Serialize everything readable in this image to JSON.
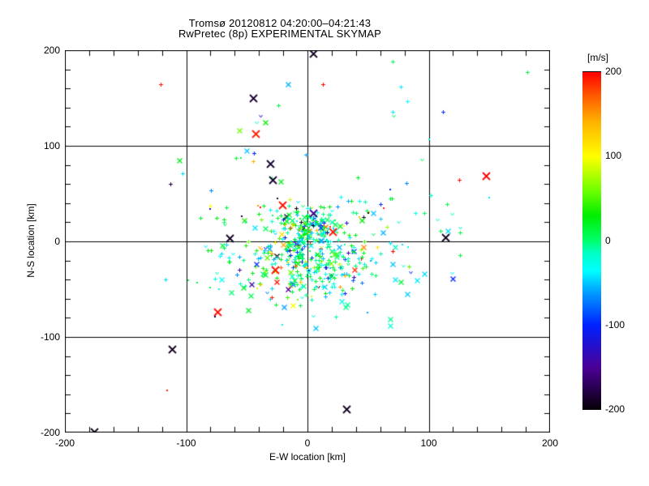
{
  "title": {
    "line1": "Tromsø 20120812 04:20:00–04:21:43",
    "line2": "RwPretec (8p) EXPERIMENTAL SKYMAP"
  },
  "axes": {
    "x": {
      "label": "E-W location [km]",
      "min": -200,
      "max": 200,
      "major_ticks": [
        -200,
        -100,
        0,
        100,
        200
      ],
      "minor_step": 20
    },
    "y": {
      "label": "N-S location [km]",
      "min": -200,
      "max": 200,
      "major_ticks": [
        -200,
        -100,
        0,
        100,
        200
      ],
      "minor_step": 20
    },
    "grid": true
  },
  "colorbar": {
    "label": "[m/s]",
    "min": -200,
    "max": 200,
    "ticks": [
      200,
      100,
      0,
      -100,
      -200
    ],
    "stops": [
      [
        -200,
        "#050005"
      ],
      [
        -150,
        "#4b0096"
      ],
      [
        -100,
        "#0020ff"
      ],
      [
        -60,
        "#00a0ff"
      ],
      [
        -35,
        "#00ffff"
      ],
      [
        -15,
        "#00ffc8"
      ],
      [
        0,
        "#00ff6e"
      ],
      [
        30,
        "#00ee00"
      ],
      [
        60,
        "#70ff00"
      ],
      [
        100,
        "#ffff00"
      ],
      [
        140,
        "#ffb400"
      ],
      [
        170,
        "#ff6000"
      ],
      [
        200,
        "#ff0000"
      ]
    ]
  },
  "chart_data": {
    "type": "scatter",
    "title": "Tromsø 20120812 04:20:00–04:21:43 / RwPretec (8p) EXPERIMENTAL SKYMAP",
    "xlabel": "E-W location [km]",
    "ylabel": "N-S location [km]",
    "xlim": [
      -200,
      200
    ],
    "ylim": [
      -200,
      200
    ],
    "value_unit": "m/s",
    "value_range": [
      -200,
      200
    ],
    "legend_position": "right-colorbar",
    "grid": true,
    "points_format": [
      "x_km",
      "y_km",
      "velocity_mps",
      "marker_code"
    ],
    "marker_codes": {
      "0": "small-plus",
      "1": "medium-cross",
      "2": "large-cross",
      "3": "dot",
      "4": "small-v"
    },
    "points": [
      [
        -121,
        164,
        195,
        0
      ],
      [
        -106,
        85,
        25,
        1
      ],
      [
        -103,
        71,
        -45,
        0
      ],
      [
        5,
        197,
        -190,
        2
      ],
      [
        -16,
        164,
        -55,
        1
      ],
      [
        13,
        164,
        200,
        0
      ],
      [
        -45,
        150,
        -185,
        2
      ],
      [
        -24,
        142,
        10,
        0
      ],
      [
        -39,
        131,
        -120,
        4
      ],
      [
        -42,
        125,
        -20,
        4
      ],
      [
        -35,
        125,
        30,
        1
      ],
      [
        -56,
        116,
        60,
        1
      ],
      [
        -43,
        113,
        190,
        2
      ],
      [
        -50,
        95,
        -50,
        1
      ],
      [
        -44,
        92,
        -100,
        0
      ],
      [
        -59,
        87,
        15,
        0
      ],
      [
        -55,
        87,
        10,
        3
      ],
      [
        -45,
        84,
        140,
        0
      ],
      [
        70,
        188,
        5,
        0
      ],
      [
        181,
        177,
        10,
        0
      ],
      [
        77,
        162,
        -40,
        0
      ],
      [
        82,
        147,
        -35,
        0
      ],
      [
        112,
        136,
        -95,
        0
      ],
      [
        70,
        136,
        -40,
        0
      ],
      [
        71,
        131,
        5,
        4
      ],
      [
        100,
        107,
        -20,
        3
      ],
      [
        94,
        86,
        0,
        4
      ],
      [
        147,
        69,
        200,
        2
      ],
      [
        125,
        64,
        195,
        0
      ],
      [
        -113,
        60,
        -180,
        0
      ],
      [
        -80,
        37,
        100,
        0
      ],
      [
        -80,
        34,
        -110,
        3
      ],
      [
        -88,
        25,
        15,
        0
      ],
      [
        -68,
        18,
        10,
        4
      ],
      [
        -69,
        -7,
        10,
        0
      ],
      [
        -72,
        -15,
        -35,
        0
      ],
      [
        -75,
        -33,
        -15,
        4
      ],
      [
        -117,
        -40,
        -45,
        0
      ],
      [
        -98,
        -41,
        5,
        3
      ],
      [
        -91,
        -43,
        10,
        3
      ],
      [
        -80,
        -48,
        10,
        3
      ],
      [
        -73,
        -50,
        -15,
        3
      ],
      [
        -74,
        -74,
        195,
        2
      ],
      [
        -76,
        -79,
        -185,
        3
      ],
      [
        -112,
        -113,
        -190,
        2
      ],
      [
        -116,
        -156,
        190,
        3
      ],
      [
        -176,
        -199,
        -195,
        2
      ],
      [
        32,
        -175,
        -190,
        2
      ],
      [
        -49,
        -72,
        20,
        1
      ],
      [
        -21,
        -87,
        -40,
        3
      ],
      [
        7,
        -91,
        -50,
        1
      ],
      [
        68,
        -88,
        -20,
        1
      ],
      [
        150,
        46,
        -45,
        3
      ],
      [
        102,
        48,
        -20,
        0
      ],
      [
        115,
        39,
        10,
        0
      ],
      [
        89,
        30,
        -30,
        0
      ],
      [
        96,
        30,
        5,
        0
      ],
      [
        119,
        29,
        -15,
        4
      ],
      [
        107,
        23,
        -20,
        4
      ],
      [
        75,
        20,
        -18,
        4
      ],
      [
        126,
        14,
        -15,
        4
      ],
      [
        116,
        11,
        -45,
        1
      ],
      [
        110,
        11,
        8,
        0
      ],
      [
        126,
        9,
        12,
        0
      ],
      [
        114,
        4,
        -190,
        2
      ],
      [
        68,
        -2,
        -40,
        0
      ],
      [
        78,
        -3,
        -42,
        3
      ],
      [
        83,
        -6,
        -38,
        3
      ],
      [
        126,
        -14,
        12,
        0
      ],
      [
        70,
        -24,
        -50,
        1
      ],
      [
        79,
        -25,
        -20,
        4
      ],
      [
        85,
        -32,
        -95,
        4
      ],
      [
        96,
        -34,
        -45,
        1
      ],
      [
        72,
        -40,
        -40,
        1
      ],
      [
        77,
        -42,
        15,
        1
      ],
      [
        90,
        -41,
        -40,
        1
      ],
      [
        120,
        -39,
        -100,
        1
      ],
      [
        82,
        -55,
        -48,
        1
      ],
      [
        68,
        54,
        -100,
        3
      ],
      [
        68,
        45,
        12,
        0
      ],
      [
        119,
        -33,
        -35,
        4
      ],
      [
        -31,
        81,
        -185,
        2
      ],
      [
        -29,
        64,
        -185,
        2
      ],
      [
        -22,
        63,
        25,
        1
      ],
      [
        -21,
        38,
        195,
        2
      ],
      [
        21,
        10,
        190,
        2
      ],
      [
        -25,
        45,
        -180,
        3
      ],
      [
        -41,
        37,
        150,
        3
      ],
      [
        -39,
        36,
        195,
        3
      ],
      [
        -54,
        26,
        -185,
        3
      ],
      [
        -64,
        3,
        -190,
        2
      ],
      [
        -52,
        22,
        40,
        1
      ],
      [
        54,
        30,
        -50,
        1
      ],
      [
        62,
        9,
        -55,
        1
      ],
      [
        45,
        22,
        30,
        1
      ],
      [
        63,
        35,
        190,
        3
      ],
      [
        50,
        30,
        -185,
        3
      ],
      [
        60,
        39,
        -95,
        0
      ],
      [
        30,
        16,
        100,
        3
      ],
      [
        11,
        14,
        -90,
        1
      ],
      [
        19,
        15,
        185,
        3
      ],
      [
        -27,
        -30,
        195,
        2
      ],
      [
        -42,
        -24,
        -95,
        1
      ],
      [
        5,
        30,
        -150,
        2
      ],
      [
        5,
        -78,
        -18,
        4
      ]
    ],
    "dense_cluster": {
      "seed": 12345,
      "groups": [
        {
          "n": 150,
          "cx": 0,
          "cy": 14,
          "sx": 13,
          "sy": 11
        },
        {
          "n": 250,
          "cx": -4,
          "cy": -24,
          "sx": 26,
          "sy": 20
        },
        {
          "n": 130,
          "cx": 2,
          "cy": -4,
          "sx": 44,
          "sy": 34
        }
      ],
      "velocity_mix": [
        {
          "w": 0.52,
          "lo": -20,
          "hi": 30
        },
        {
          "w": 0.25,
          "lo": -60,
          "hi": -20
        },
        {
          "w": 0.08,
          "lo": 30,
          "hi": 90
        },
        {
          "w": 0.07,
          "lo": -120,
          "hi": -60
        },
        {
          "w": 0.05,
          "lo": 90,
          "hi": 200
        },
        {
          "w": 0.03,
          "lo": -200,
          "hi": -120
        }
      ],
      "marker_mix": [
        {
          "w": 0.7,
          "m": 0
        },
        {
          "w": 0.15,
          "m": 1
        },
        {
          "w": 0.08,
          "m": 3
        },
        {
          "w": 0.07,
          "m": 4
        }
      ]
    }
  }
}
